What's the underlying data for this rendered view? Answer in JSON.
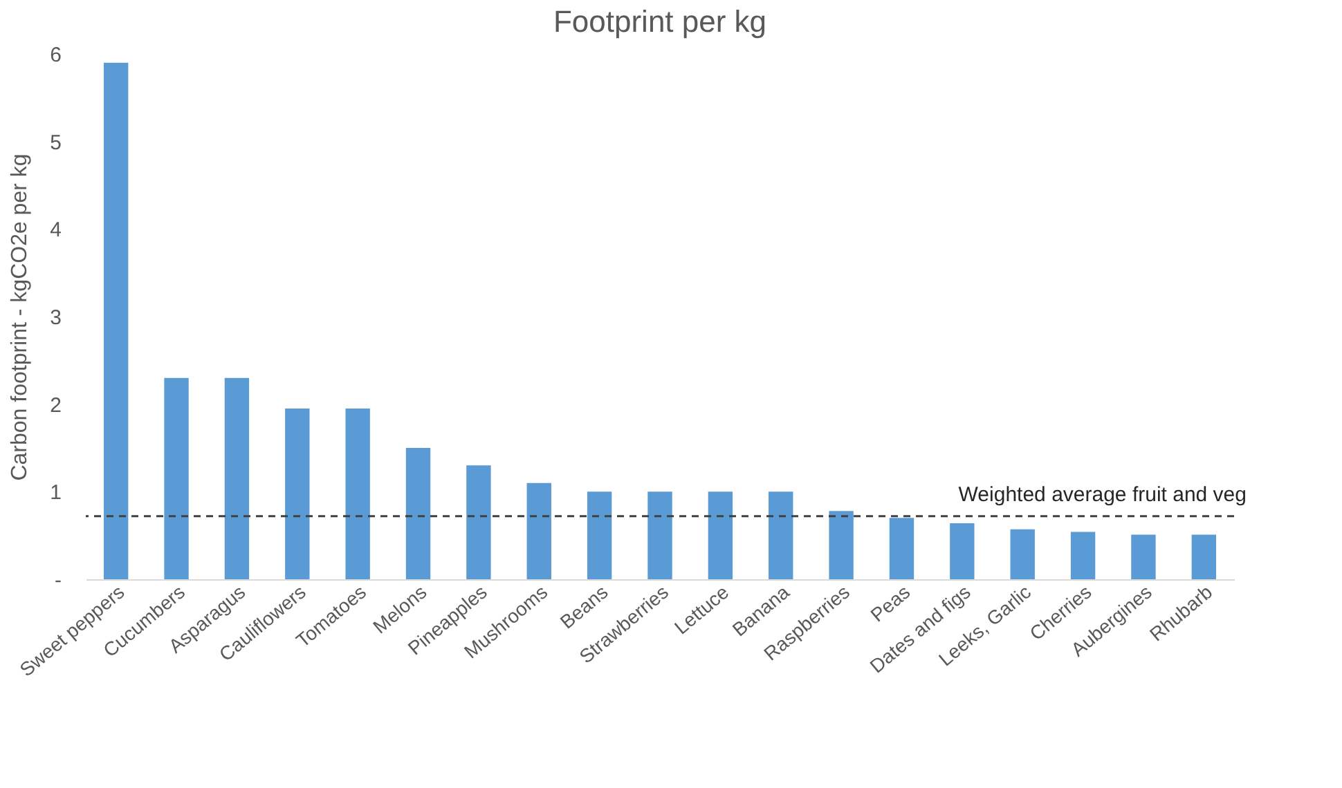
{
  "chart_data": {
    "type": "bar",
    "title": "Footprint per kg",
    "ylabel": "Carbon footprint - kgCO2e per kg",
    "categories": [
      "Sweet peppers",
      "Cucumbers",
      "Asparagus",
      "Cauliflowers",
      "Tomatoes",
      "Melons",
      "Pineapples",
      "Mushrooms",
      "Beans",
      "Strawberries",
      "Lettuce",
      "Banana",
      "Raspberries",
      "Peas",
      "Dates and figs",
      "Leeks, Garlic",
      "Cherries",
      "Aubergines",
      "Rhubarb"
    ],
    "values": [
      5.9,
      2.3,
      2.3,
      1.95,
      1.95,
      1.5,
      1.3,
      1.1,
      1.0,
      1.0,
      1.0,
      1.0,
      0.78,
      0.7,
      0.64,
      0.57,
      0.54,
      0.51,
      0.51
    ],
    "color": "#5b9bd5",
    "ylim": [
      0,
      6
    ],
    "yticks": [
      {
        "value": 0,
        "label": "-"
      },
      1,
      2,
      3,
      4,
      5,
      6
    ],
    "grid": false,
    "ref_lines": [
      {
        "axis": "y",
        "value": 0.72,
        "label": "Weighted average fruit and veg",
        "color": "#404040",
        "line_style": "dashed"
      }
    ]
  }
}
